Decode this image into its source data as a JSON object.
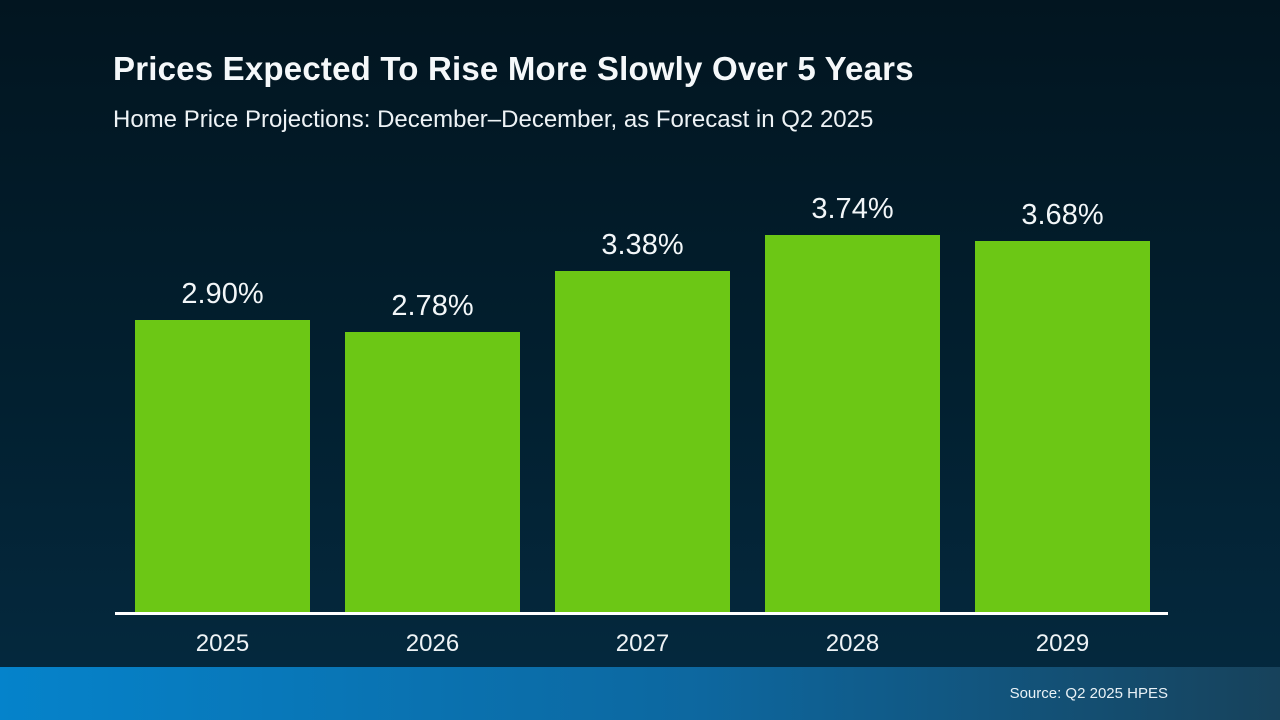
{
  "header": {
    "title": "Prices Expected To Rise More Slowly Over 5 Years",
    "subtitle": "Home Price Projections: December–December, as Forecast in Q2 2025"
  },
  "footer": {
    "source": "Source: Q2 2025 HPES"
  },
  "colors": {
    "bar_green": "#6cc715",
    "background_top": "#021520",
    "background_bottom": "#052a40",
    "footer_blue_left": "#0583cb",
    "footer_blue_right": "#17425b",
    "axis_line": "#ffffff",
    "text": "#f2f6f8"
  },
  "chart_data": {
    "type": "bar",
    "title": "Prices Expected To Rise More Slowly Over 5 Years",
    "subtitle": "Home Price Projections: December–December, as Forecast in Q2 2025",
    "categories": [
      "2025",
      "2026",
      "2027",
      "2028",
      "2029"
    ],
    "values": [
      2.9,
      2.78,
      3.38,
      3.74,
      3.68
    ],
    "value_labels": [
      "2.90%",
      "2.78%",
      "3.38%",
      "3.74%",
      "3.68%"
    ],
    "xlabel": "",
    "ylabel": "",
    "ylim": [
      0,
      4.2
    ],
    "grid": false,
    "legend": false,
    "data_labels_position": "above-bars",
    "source": "Source: Q2 2025 HPES"
  }
}
